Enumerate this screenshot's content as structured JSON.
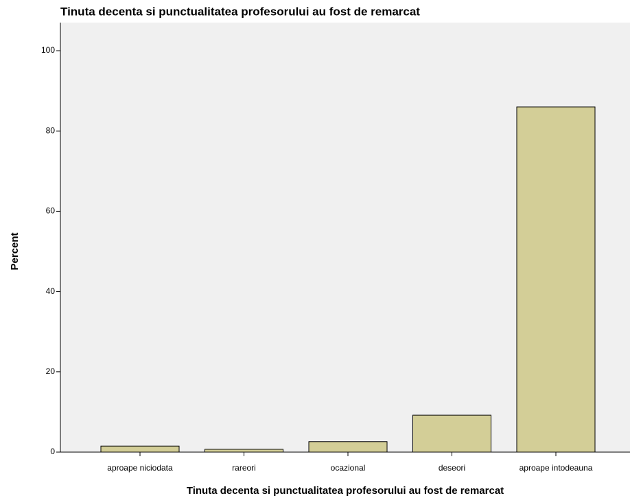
{
  "chart_data": {
    "type": "bar",
    "title": "Tinuta decenta si punctualitatea profesorului au fost de remarcat",
    "x_label": "Tinuta decenta si punctualitatea profesorului au fost de remarcat",
    "y_label": "Percent",
    "categories": [
      "aproape niciodata",
      "rareori",
      "ocazional",
      "deseori",
      "aproape intodeauna"
    ],
    "values": [
      1.5,
      0.7,
      2.6,
      9.2,
      86.0
    ],
    "color": "#d3ce97",
    "ylim": [
      0,
      107
    ],
    "yticks": [
      0,
      20,
      40,
      60,
      80,
      100
    ],
    "grid": false
  }
}
